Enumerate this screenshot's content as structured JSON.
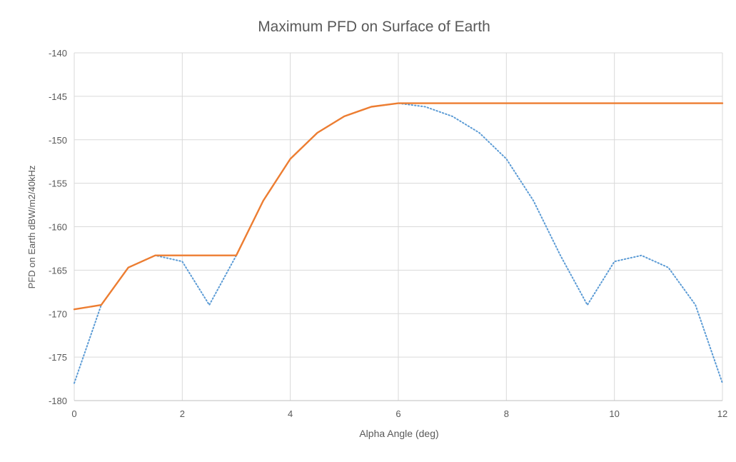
{
  "chart_data": {
    "type": "line",
    "title": "Maximum PFD on Surface of Earth",
    "xlabel": "Alpha Angle (deg)",
    "ylabel": "PFD on Earth dBW/m2/40kHz",
    "xlim": [
      0,
      12
    ],
    "ylim": [
      -180,
      -140
    ],
    "x_ticks": [
      0,
      2,
      4,
      6,
      8,
      10,
      12
    ],
    "y_ticks": [
      -140,
      -145,
      -150,
      -155,
      -160,
      -165,
      -170,
      -175,
      -180
    ],
    "grid": true,
    "legend": "none",
    "series": [
      {
        "style": "dotted",
        "color": "#5B9BD5",
        "x": [
          0,
          0.5,
          1,
          1.5,
          2,
          2.5,
          3,
          3.5,
          4,
          4.5,
          5,
          5.5,
          6,
          6.5,
          7,
          7.5,
          8,
          8.5,
          9,
          9.5,
          10,
          10.5,
          11,
          11.5,
          12
        ],
        "values": [
          -178,
          -169,
          -164.7,
          -163.3,
          -164,
          -169,
          -163.3,
          -157,
          -152.2,
          -149.2,
          -147.3,
          -146.2,
          -145.8,
          -146.2,
          -147.3,
          -149.2,
          -152.2,
          -157,
          -163.3,
          -169,
          -164,
          -163.3,
          -164.7,
          -169,
          -178
        ]
      },
      {
        "style": "solid",
        "color": "#ED7D31",
        "x": [
          0,
          0.5,
          1,
          1.5,
          2,
          2.5,
          3,
          3.5,
          4,
          4.5,
          5,
          5.5,
          6,
          6.5,
          7,
          7.5,
          8,
          8.5,
          9,
          9.5,
          10,
          10.5,
          11,
          11.5,
          12
        ],
        "values": [
          -169.5,
          -169,
          -164.7,
          -163.3,
          -163.3,
          -163.3,
          -163.3,
          -157,
          -152.2,
          -149.2,
          -147.3,
          -146.2,
          -145.8,
          -145.8,
          -145.8,
          -145.8,
          -145.8,
          -145.8,
          -145.8,
          -145.8,
          -145.8,
          -145.8,
          -145.8,
          -145.8,
          -145.8
        ]
      }
    ]
  }
}
